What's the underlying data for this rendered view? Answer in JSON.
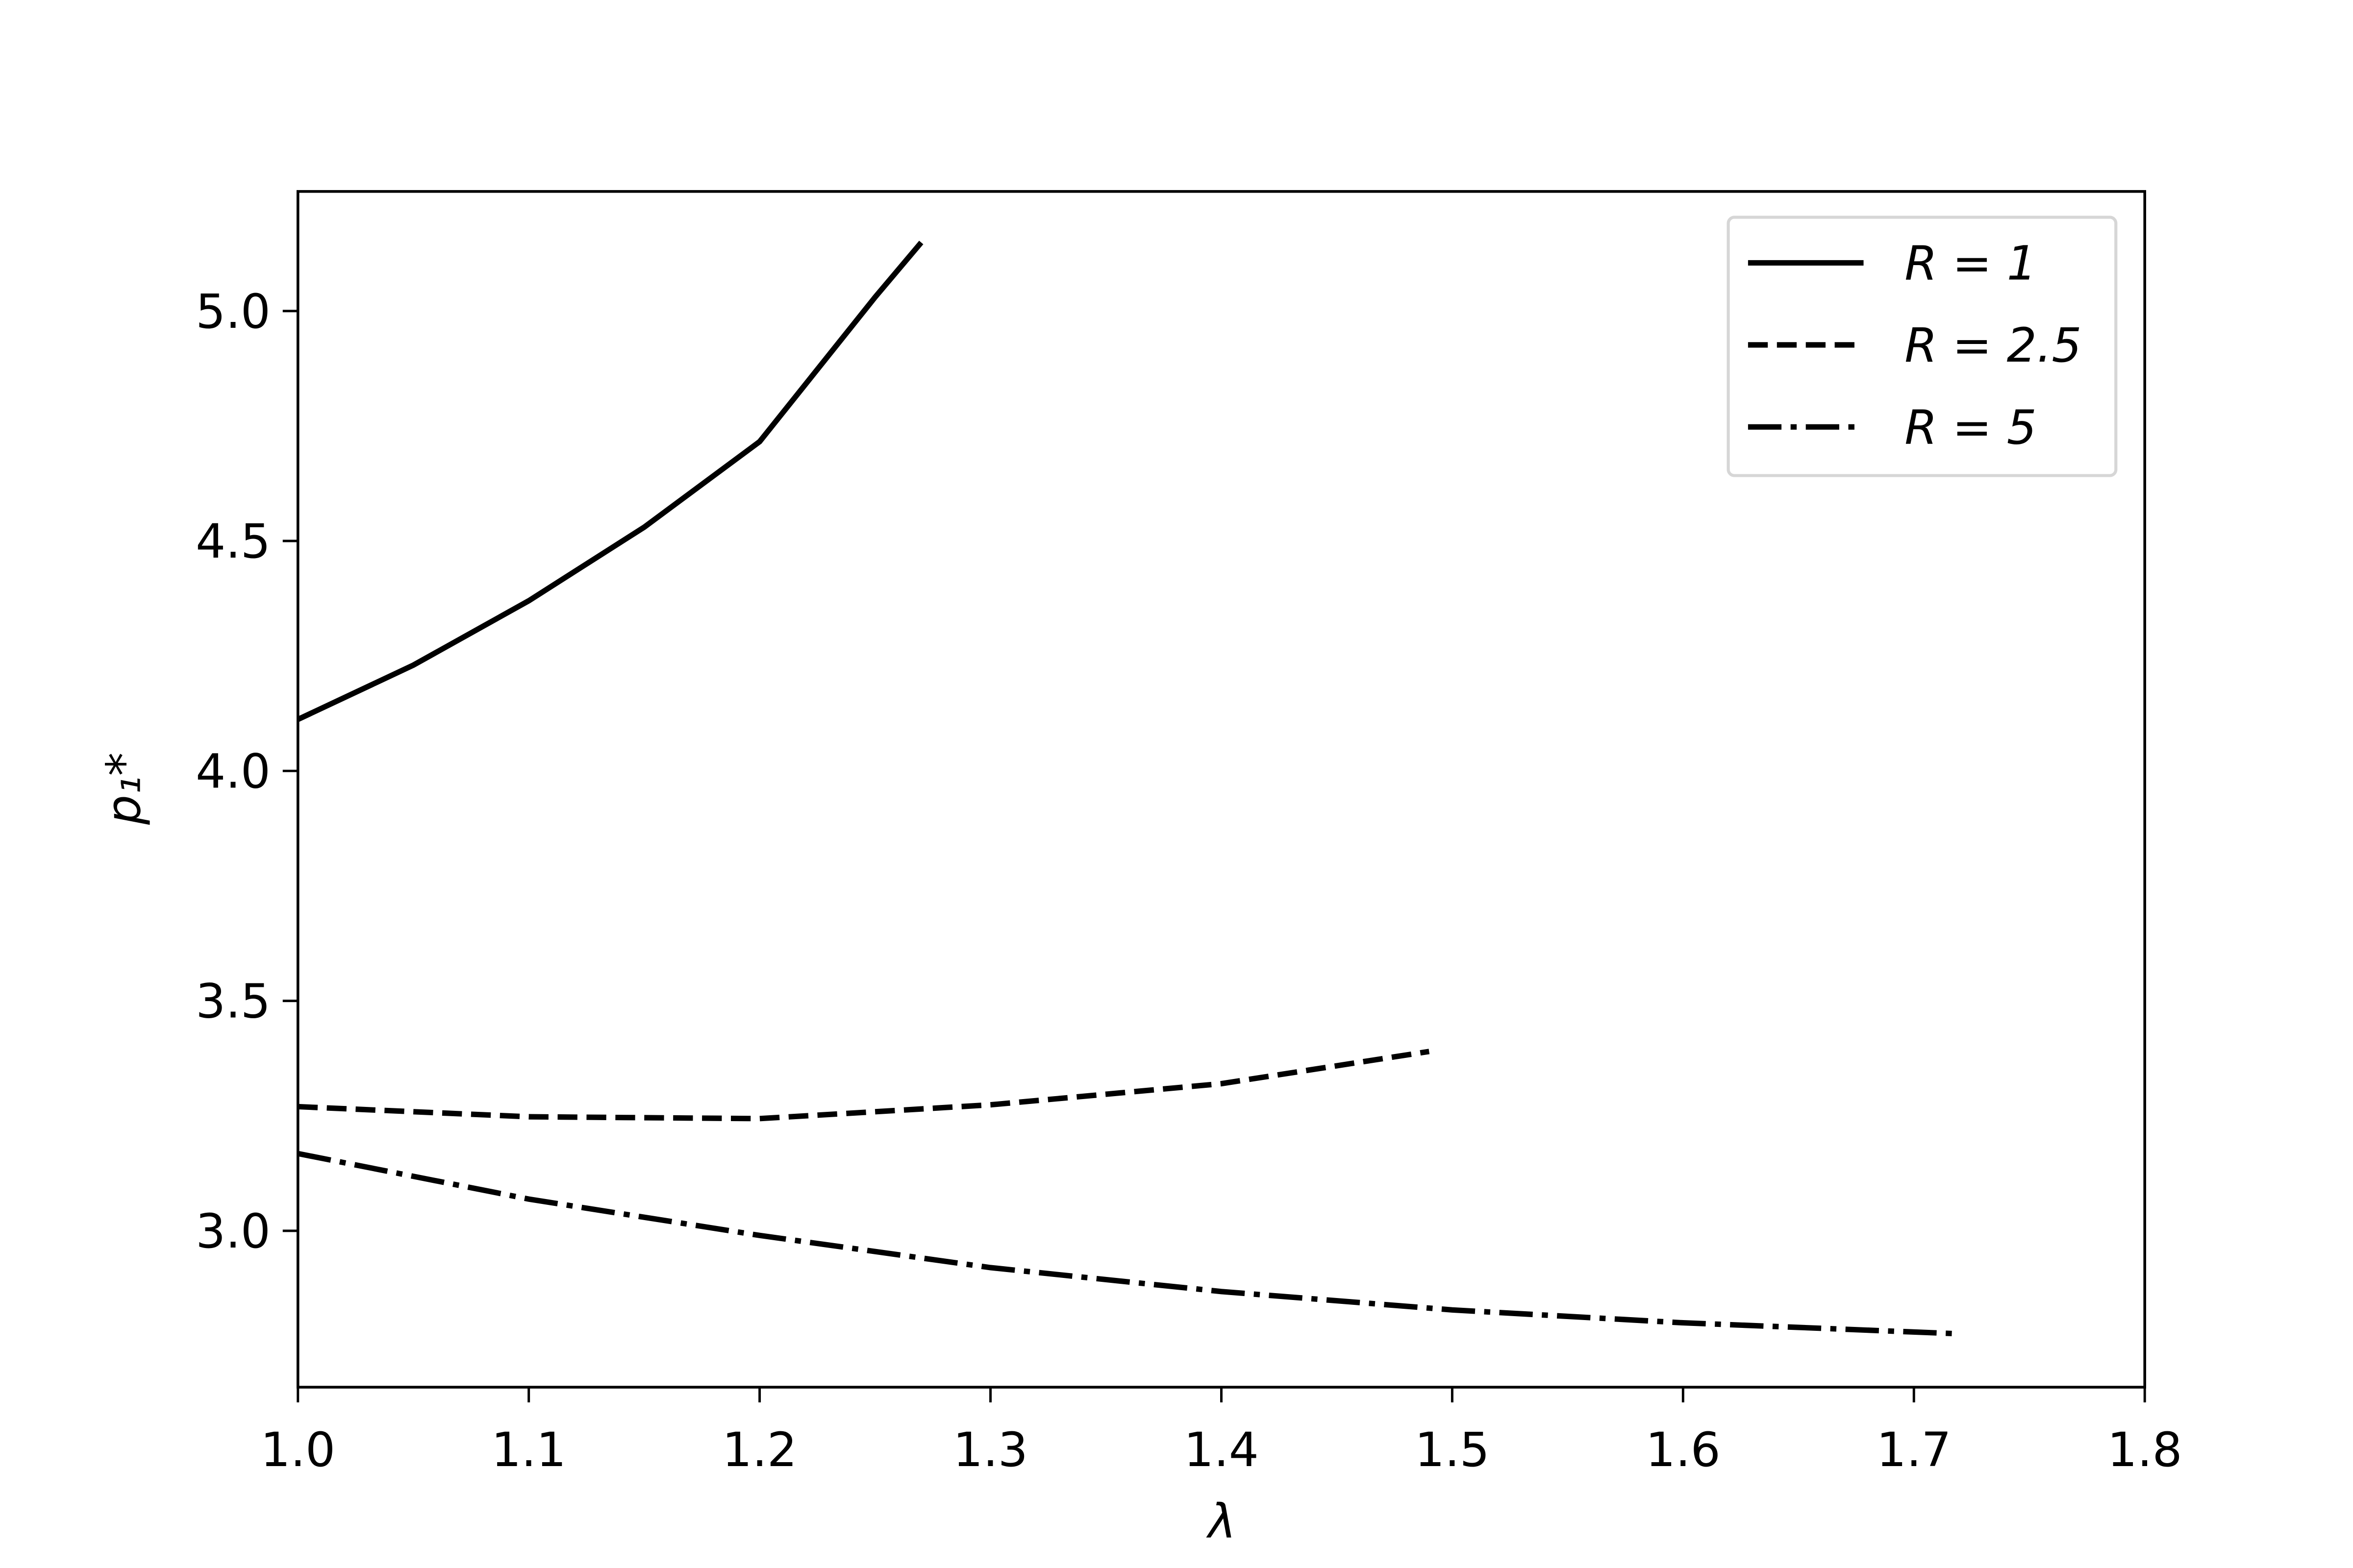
{
  "chart_data": {
    "type": "line",
    "x_label": "λ",
    "y_label": "p₁*",
    "xlim": [
      1.0,
      1.8
    ],
    "ylim": [
      2.66,
      5.26
    ],
    "xticks": [
      {
        "value": 1.0,
        "label": "1.0"
      },
      1.1,
      1.2,
      1.3,
      1.4,
      1.5,
      1.6,
      1.7,
      1.8
    ],
    "yticks": [
      {
        "value": 3.0,
        "label": "3.0"
      },
      3.5,
      {
        "value": 4.0,
        "label": "4.0"
      },
      4.5,
      {
        "value": 5.0,
        "label": "5.0"
      }
    ],
    "grid": false,
    "legend": "upper right",
    "series": [
      {
        "name": "R = 1",
        "color": "#000000",
        "linestyle": "solid",
        "x": [
          1.0,
          1.05,
          1.1,
          1.15,
          1.2,
          1.25,
          1.27
        ],
        "values": [
          4.112,
          4.23,
          4.37,
          4.53,
          4.716,
          5.03,
          5.149
        ]
      },
      {
        "name": "R = 2.5",
        "color": "#000000",
        "linestyle": "dashed",
        "x": [
          1.0,
          1.1,
          1.2,
          1.3,
          1.4,
          1.49
        ],
        "values": [
          3.27,
          3.248,
          3.244,
          3.274,
          3.32,
          3.39
        ]
      },
      {
        "name": "R = 5",
        "color": "#000000",
        "linestyle": "dashdot",
        "x": [
          1.0,
          1.1,
          1.2,
          1.3,
          1.4,
          1.5,
          1.6,
          1.72
        ],
        "values": [
          3.168,
          3.069,
          2.99,
          2.92,
          2.868,
          2.828,
          2.8,
          2.776
        ]
      }
    ]
  }
}
